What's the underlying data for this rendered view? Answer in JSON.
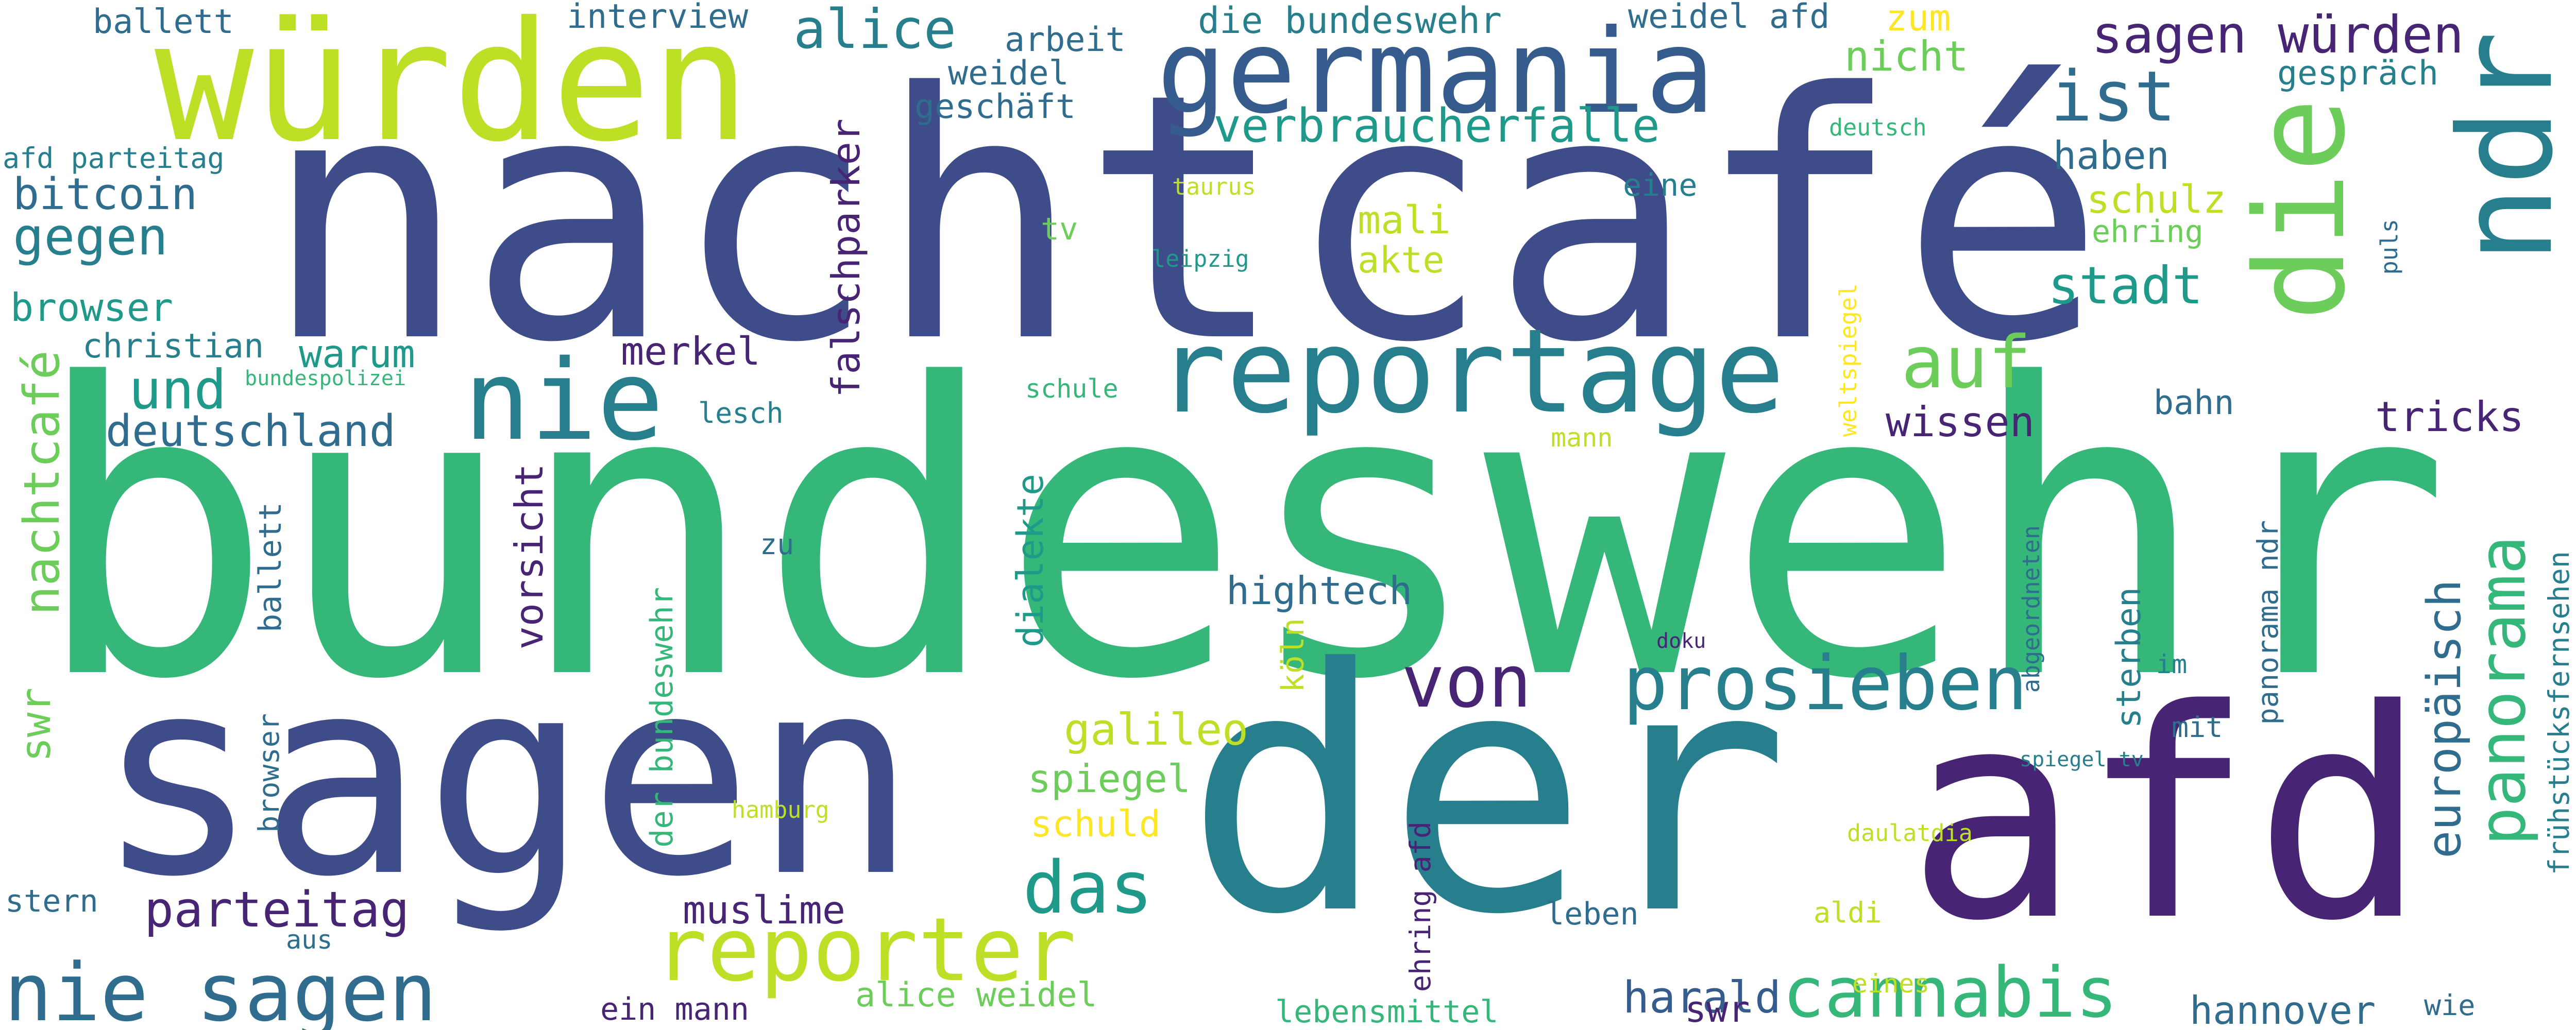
{
  "palette": {
    "deep_purple": "#482475",
    "indigo": "#3e4c8a",
    "slate_blue": "#365c8d",
    "blue_teal": "#2f6c8e",
    "teal": "#277f8e",
    "teal_green": "#1f9a8a",
    "green": "#35b779",
    "light_green": "#6ccd5a",
    "lime": "#bddf26",
    "yellow": "#fde725"
  },
  "words": {
    "bundeswehr": "bundeswehr",
    "nachtcafe_accent": "nachtcafé",
    "der": "der",
    "afd": "afd",
    "sagen": "sagen",
    "wuerden": "würden",
    "germania": "germania",
    "ndr": "ndr",
    "die": "die",
    "reportage": "reportage",
    "nie": "nie",
    "von": "von",
    "prosieben": "prosieben",
    "reporter": "reporter",
    "nie_sagen": "nie sagen",
    "cannabis": "cannabis",
    "das": "das",
    "auf": "auf",
    "panorama": "panorama",
    "sagen_wuerden": "sagen würden",
    "ist": "ist",
    "europaeisch": "europäisch",
    "und": "und",
    "nachtcafe": "nachtcafé",
    "alice": "alice",
    "gegen": "gegen",
    "verbraucherfalle": "verbraucherfalle",
    "stadt": "stadt",
    "parteitag": "parteitag",
    "falschparker": "falschparker",
    "die_bundeswehr": "die bundeswehr",
    "bitcoin": "bitcoin",
    "deutschland": "deutschland",
    "harald": "harald",
    "galileo": "galileo",
    "hannover": "hannover",
    "dialekte": "dialekte",
    "muslime": "muslime",
    "nicht": "nicht",
    "wissen": "wissen",
    "haben": "haben",
    "browser": "browser",
    "warum": "warum",
    "merkel": "merkel",
    "vorsicht": "vorsicht",
    "hightech": "hightech",
    "tricks": "tricks",
    "schulz": "schulz",
    "mali": "mali",
    "akte": "akte",
    "spiegel": "spiegel",
    "schuld": "schuld",
    "koeln": "köln",
    "ballett": "ballett",
    "interview": "interview",
    "weidel_afd": "weidel afd",
    "geschaeft": "geschäft",
    "arbeit": "arbeit",
    "weidel": "weidel",
    "gespraech": "gespräch",
    "christian": "christian",
    "alice_weidel": "alice weidel",
    "sterben": "sterben",
    "zum": "zum",
    "afd_parteitag": "afd parteitag",
    "bahn": "bahn",
    "swr": "swr",
    "ein_mann": "ein mann",
    "lebensmittel": "lebensmittel",
    "leben": "leben",
    "der_bundeswehr": "der bundeswehr",
    "panorama_ndr": "panorama ndr",
    "ehring_afd": "ehring afd",
    "ballett_vertical": "ballett",
    "browser_vertical": "browser",
    "stern": "stern",
    "aus": "aus",
    "fruehstuecksfernsehen": "frühstücksfernsehen",
    "weltspiegel": "weltspiegel",
    "tv": "tv",
    "eine": "eine",
    "ehring": "ehring",
    "deutsch": "deutsch",
    "puls": "puls",
    "schule": "schule",
    "mann": "mann",
    "lesch": "lesch",
    "bundespolizei": "bundespolizei",
    "zu": "zu",
    "abgeordneten": "abgeordneten",
    "mit": "mit",
    "wie": "wie",
    "eines": "eines",
    "aldi": "aldi",
    "im": "im",
    "doku": "doku",
    "spiegel_tv": "spiegel tv",
    "daulatdia": "daulatdia",
    "hamburg": "hamburg",
    "taurus": "taurus",
    "leipzig": "leipzig"
  }
}
